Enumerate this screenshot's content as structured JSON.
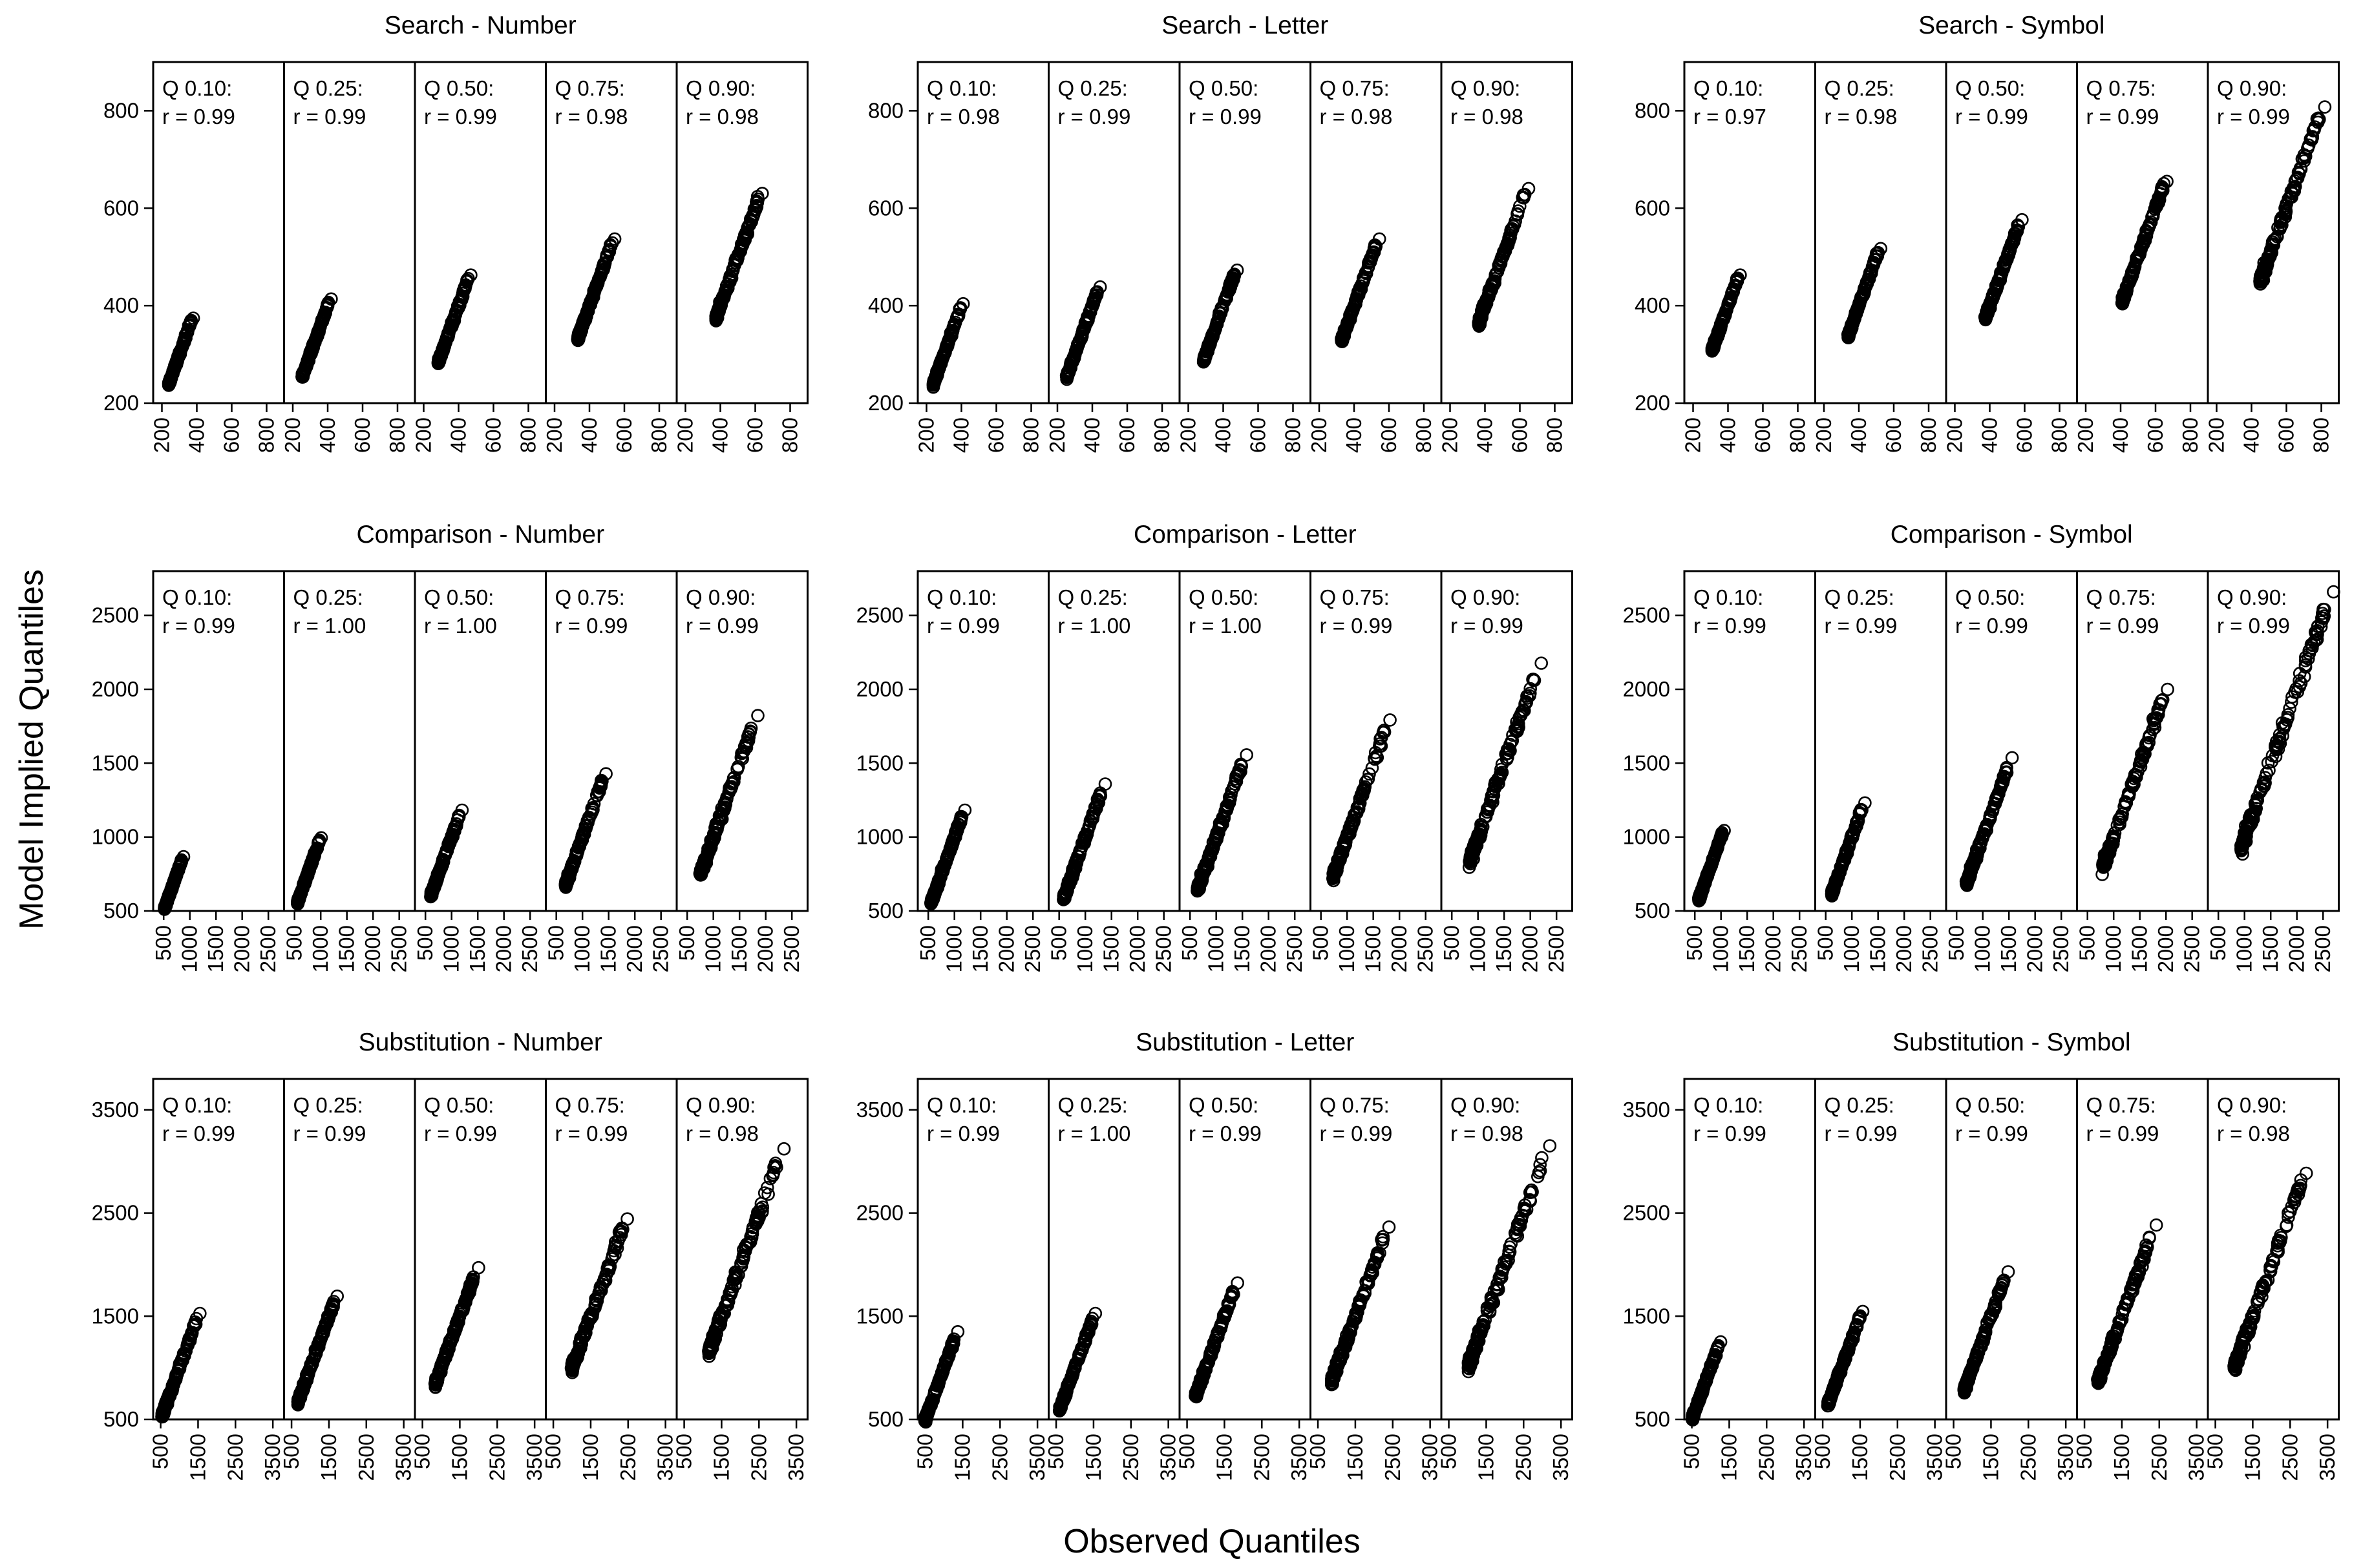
{
  "figure": {
    "ylabel": "Model Implied Quantiles",
    "xlabel": "Observed Quantiles"
  },
  "chart_data": [
    {
      "type": "scatter",
      "title": "Search - Number",
      "task": "Search",
      "stimulus": "Number",
      "xlim": [
        150,
        900
      ],
      "ylim": [
        200,
        900
      ],
      "yticks": [
        200,
        400,
        600,
        800
      ],
      "xticks": [
        200,
        400,
        600,
        800
      ],
      "panels": [
        {
          "q": "0.10",
          "r": "0.99",
          "x": [
            240,
            380
          ]
        },
        {
          "q": "0.25",
          "r": "0.99",
          "x": [
            255,
            420
          ]
        },
        {
          "q": "0.50",
          "r": "0.99",
          "x": [
            285,
            470
          ]
        },
        {
          "q": "0.75",
          "r": "0.98",
          "x": [
            335,
            545
          ]
        },
        {
          "q": "0.90",
          "r": "0.98",
          "x": [
            375,
            640
          ]
        }
      ]
    },
    {
      "type": "scatter",
      "title": "Search - Letter",
      "task": "Search",
      "stimulus": "Letter",
      "xlim": [
        150,
        900
      ],
      "ylim": [
        200,
        900
      ],
      "yticks": [
        200,
        400,
        600,
        800
      ],
      "xticks": [
        200,
        400,
        600,
        800
      ],
      "panels": [
        {
          "q": "0.10",
          "r": "0.98",
          "x": [
            240,
            410
          ]
        },
        {
          "q": "0.25",
          "r": "0.99",
          "x": [
            255,
            445
          ]
        },
        {
          "q": "0.50",
          "r": "0.99",
          "x": [
            290,
            480
          ]
        },
        {
          "q": "0.75",
          "r": "0.98",
          "x": [
            330,
            545
          ]
        },
        {
          "q": "0.90",
          "r": "0.98",
          "x": [
            365,
            650
          ]
        }
      ]
    },
    {
      "type": "scatter",
      "title": "Search - Symbol",
      "task": "Search",
      "stimulus": "Symbol",
      "xlim": [
        150,
        900
      ],
      "ylim": [
        200,
        900
      ],
      "yticks": [
        200,
        400,
        600,
        800
      ],
      "xticks": [
        200,
        400,
        600,
        800
      ],
      "panels": [
        {
          "q": "0.10",
          "r": "0.97",
          "x": [
            310,
            470
          ]
        },
        {
          "q": "0.25",
          "r": "0.98",
          "x": [
            340,
            525
          ]
        },
        {
          "q": "0.50",
          "r": "0.99",
          "x": [
            375,
            585
          ]
        },
        {
          "q": "0.75",
          "r": "0.99",
          "x": [
            410,
            665
          ]
        },
        {
          "q": "0.90",
          "r": "0.99",
          "x": [
            450,
            820
          ]
        }
      ]
    },
    {
      "type": "scatter",
      "title": "Comparison - Number",
      "task": "Comparison",
      "stimulus": "Number",
      "xlim": [
        300,
        2800
      ],
      "ylim": [
        500,
        2800
      ],
      "yticks": [
        500,
        1000,
        1500,
        2000,
        2500
      ],
      "xticks": [
        500,
        1000,
        1500,
        2000,
        2500
      ],
      "panels": [
        {
          "q": "0.10",
          "r": "0.99",
          "x": [
            520,
            880
          ]
        },
        {
          "q": "0.25",
          "r": "1.00",
          "x": [
            560,
            1010
          ]
        },
        {
          "q": "0.50",
          "r": "1.00",
          "x": [
            610,
            1200
          ]
        },
        {
          "q": "0.75",
          "r": "0.99",
          "x": [
            680,
            1450
          ]
        },
        {
          "q": "0.90",
          "r": "0.99",
          "x": [
            760,
            1850
          ]
        }
      ]
    },
    {
      "type": "scatter",
      "title": "Comparison - Letter",
      "task": "Comparison",
      "stimulus": "Letter",
      "xlim": [
        300,
        2800
      ],
      "ylim": [
        500,
        2800
      ],
      "yticks": [
        500,
        1000,
        1500,
        2000,
        2500
      ],
      "xticks": [
        500,
        1000,
        1500,
        2000,
        2500
      ],
      "panels": [
        {
          "q": "0.10",
          "r": "0.99",
          "x": [
            560,
            1200
          ]
        },
        {
          "q": "0.25",
          "r": "1.00",
          "x": [
            590,
            1380
          ]
        },
        {
          "q": "0.50",
          "r": "1.00",
          "x": [
            650,
            1580
          ]
        },
        {
          "q": "0.75",
          "r": "0.99",
          "x": [
            740,
            1820
          ]
        },
        {
          "q": "0.90",
          "r": "0.99",
          "x": [
            850,
            2210
          ]
        }
      ]
    },
    {
      "type": "scatter",
      "title": "Comparison - Symbol",
      "task": "Comparison",
      "stimulus": "Symbol",
      "xlim": [
        300,
        2800
      ],
      "ylim": [
        500,
        2800
      ],
      "yticks": [
        500,
        1000,
        1500,
        2000,
        2500
      ],
      "xticks": [
        500,
        1000,
        1500,
        2000,
        2500
      ],
      "panels": [
        {
          "q": "0.10",
          "r": "0.99",
          "x": [
            580,
            1060
          ]
        },
        {
          "q": "0.25",
          "r": "0.99",
          "x": [
            620,
            1250
          ]
        },
        {
          "q": "0.50",
          "r": "0.99",
          "x": [
            690,
            1560
          ]
        },
        {
          "q": "0.75",
          "r": "0.99",
          "x": [
            800,
            2030
          ]
        },
        {
          "q": "0.90",
          "r": "0.99",
          "x": [
            940,
            2700
          ]
        }
      ]
    },
    {
      "type": "scatter",
      "title": "Substitution - Number",
      "task": "Substitution",
      "stimulus": "Number",
      "xlim": [
        300,
        3800
      ],
      "ylim": [
        500,
        3800
      ],
      "yticks": [
        500,
        1500,
        2500,
        3500
      ],
      "xticks": [
        500,
        1500,
        2500,
        3500
      ],
      "panels": [
        {
          "q": "0.10",
          "r": "0.99",
          "x": [
            540,
            1550
          ]
        },
        {
          "q": "0.25",
          "r": "0.99",
          "x": [
            680,
            1720
          ]
        },
        {
          "q": "0.50",
          "r": "0.99",
          "x": [
            850,
            2000
          ]
        },
        {
          "q": "0.75",
          "r": "0.99",
          "x": [
            1000,
            2480
          ]
        },
        {
          "q": "0.90",
          "r": "0.98",
          "x": [
            1170,
            3170
          ]
        }
      ]
    },
    {
      "type": "scatter",
      "title": "Substitution - Letter",
      "task": "Substitution",
      "stimulus": "Letter",
      "xlim": [
        300,
        3800
      ],
      "ylim": [
        500,
        3800
      ],
      "yticks": [
        500,
        1500,
        2500,
        3500
      ],
      "xticks": [
        500,
        1500,
        2500,
        3500
      ],
      "panels": [
        {
          "q": "0.10",
          "r": "0.99",
          "x": [
            500,
            1370
          ]
        },
        {
          "q": "0.25",
          "r": "1.00",
          "x": [
            600,
            1550
          ]
        },
        {
          "q": "0.50",
          "r": "0.99",
          "x": [
            740,
            1850
          ]
        },
        {
          "q": "0.75",
          "r": "0.99",
          "x": [
            870,
            2400
          ]
        },
        {
          "q": "0.90",
          "r": "0.98",
          "x": [
            1030,
            3200
          ]
        }
      ]
    },
    {
      "type": "scatter",
      "title": "Substitution - Symbol",
      "task": "Substitution",
      "stimulus": "Symbol",
      "xlim": [
        300,
        3800
      ],
      "ylim": [
        500,
        3800
      ],
      "yticks": [
        500,
        1500,
        2500,
        3500
      ],
      "xticks": [
        500,
        1500,
        2500,
        3500
      ],
      "panels": [
        {
          "q": "0.10",
          "r": "0.99",
          "x": [
            520,
            1270
          ]
        },
        {
          "q": "0.25",
          "r": "0.99",
          "x": [
            650,
            1570
          ]
        },
        {
          "q": "0.50",
          "r": "0.99",
          "x": [
            790,
            1960
          ]
        },
        {
          "q": "0.75",
          "r": "0.99",
          "x": [
            880,
            2420
          ]
        },
        {
          "q": "0.90",
          "r": "0.98",
          "x": [
            1020,
            2930
          ]
        }
      ]
    }
  ]
}
